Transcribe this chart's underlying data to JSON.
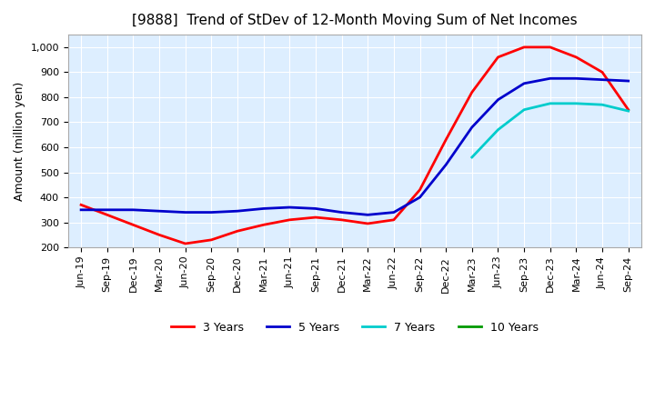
{
  "title": "[9888]  Trend of StDev of 12-Month Moving Sum of Net Incomes",
  "ylabel": "Amount (million yen)",
  "ylim": [
    200,
    1050
  ],
  "yticks": [
    200,
    300,
    400,
    500,
    600,
    700,
    800,
    900,
    1000
  ],
  "plot_background": "#ddeeff",
  "legend": [
    "3 Years",
    "5 Years",
    "7 Years",
    "10 Years"
  ],
  "legend_colors": [
    "#ff0000",
    "#0000cc",
    "#00cccc",
    "#009900"
  ],
  "x_labels": [
    "Jun-19",
    "Sep-19",
    "Dec-19",
    "Mar-20",
    "Jun-20",
    "Sep-20",
    "Dec-20",
    "Mar-21",
    "Jun-21",
    "Sep-21",
    "Dec-21",
    "Mar-22",
    "Jun-22",
    "Sep-22",
    "Dec-22",
    "Mar-23",
    "Jun-23",
    "Sep-23",
    "Dec-23",
    "Mar-24",
    "Jun-24",
    "Sep-24"
  ],
  "series_3y": [
    370,
    330,
    290,
    250,
    215,
    230,
    265,
    290,
    310,
    320,
    310,
    295,
    310,
    430,
    630,
    820,
    960,
    1000,
    1000,
    960,
    900,
    750
  ],
  "series_5y": [
    350,
    350,
    350,
    345,
    340,
    340,
    345,
    355,
    360,
    355,
    340,
    330,
    340,
    400,
    530,
    680,
    790,
    855,
    875,
    875,
    870,
    865
  ],
  "series_7y": [
    null,
    null,
    null,
    null,
    null,
    null,
    null,
    null,
    null,
    null,
    null,
    null,
    null,
    null,
    null,
    560,
    670,
    750,
    775,
    775,
    770,
    745
  ],
  "series_10y": [
    null,
    null,
    null,
    null,
    null,
    null,
    null,
    null,
    null,
    null,
    null,
    null,
    null,
    null,
    null,
    null,
    null,
    null,
    null,
    null,
    null,
    null
  ]
}
